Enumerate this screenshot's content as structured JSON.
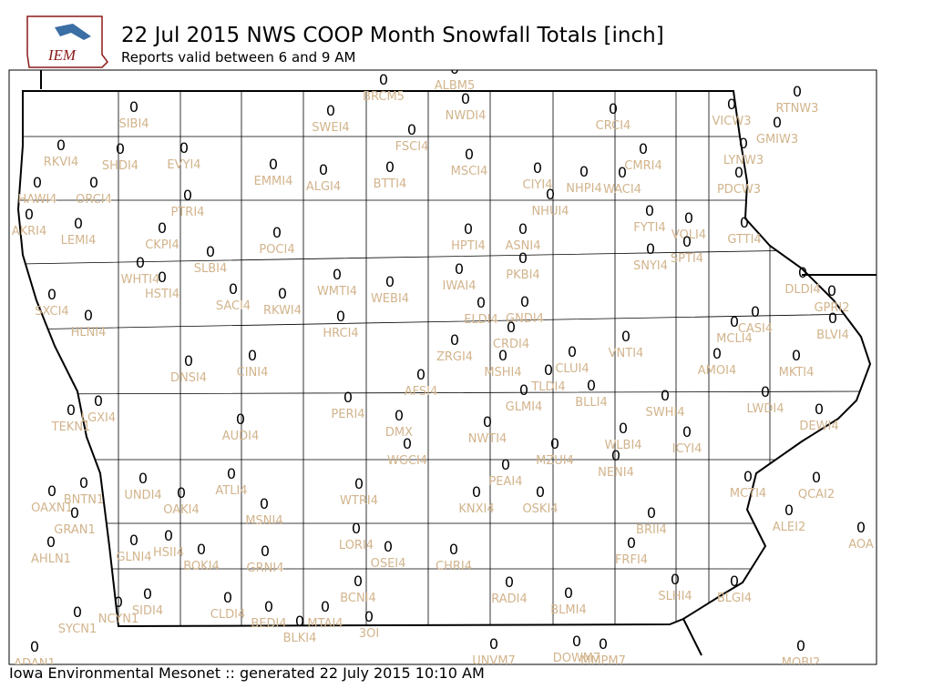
{
  "header": {
    "title": "22 Jul 2015 NWS COOP Month Snowfall Totals [inch]",
    "subtitle": "Reports valid between 6 and 9 AM"
  },
  "logo": "IEM",
  "footer": "Iowa Environmental Mesonet :: generated 22 July 2015 10:10 AM",
  "stations": [
    {
      "id": "SIBI4",
      "value": 0
    },
    {
      "id": "SWEI4",
      "value": 0
    },
    {
      "id": "BRCM5",
      "value": 0
    },
    {
      "id": "ALBM5",
      "value": 0
    },
    {
      "id": "NWDI4",
      "value": 0
    },
    {
      "id": "CRCI4",
      "value": 0
    },
    {
      "id": "VICW3",
      "value": 0
    },
    {
      "id": "RTNW3",
      "value": 0
    },
    {
      "id": "GMIW3",
      "value": 0
    },
    {
      "id": "LYNW3",
      "value": 0
    },
    {
      "id": "PDCW3",
      "value": 0
    },
    {
      "id": "FSCI4",
      "value": 0
    },
    {
      "id": "RKVI4",
      "value": 0
    },
    {
      "id": "SHDI4",
      "value": 0
    },
    {
      "id": "EVYI4",
      "value": 0
    },
    {
      "id": "EMMI4",
      "value": 0
    },
    {
      "id": "ALGI4",
      "value": 0
    },
    {
      "id": "BTTI4",
      "value": 0
    },
    {
      "id": "MSCI4",
      "value": 0
    },
    {
      "id": "CIYI4",
      "value": 0
    },
    {
      "id": "NHPI4",
      "value": 0
    },
    {
      "id": "WACI4",
      "value": 0
    },
    {
      "id": "CMRI4",
      "value": 0
    },
    {
      "id": "HAWI4",
      "value": 0
    },
    {
      "id": "ORCI4",
      "value": 0
    },
    {
      "id": "PTRI4",
      "value": 0
    },
    {
      "id": "NHUI4",
      "value": 0
    },
    {
      "id": "FYTI4",
      "value": 0
    },
    {
      "id": "VOLI4",
      "value": 0
    },
    {
      "id": "GTTI4",
      "value": 0
    },
    {
      "id": "AKRI4",
      "value": 0
    },
    {
      "id": "LEMI4",
      "value": 0
    },
    {
      "id": "CKPI4",
      "value": 0
    },
    {
      "id": "POCI4",
      "value": 0
    },
    {
      "id": "HPTI4",
      "value": 0
    },
    {
      "id": "ASNI4",
      "value": 0
    },
    {
      "id": "SNYI4",
      "value": 0
    },
    {
      "id": "SPTI4",
      "value": 0
    },
    {
      "id": "SLBI4",
      "value": 0
    },
    {
      "id": "PKBI4",
      "value": 0
    },
    {
      "id": "WHTI4",
      "value": 0
    },
    {
      "id": "HSTI4",
      "value": 0
    },
    {
      "id": "WMTI4",
      "value": 0
    },
    {
      "id": "WEBI4",
      "value": 0
    },
    {
      "id": "IWAI4",
      "value": 0
    },
    {
      "id": "DLDI4",
      "value": 0
    },
    {
      "id": "GPRI2",
      "value": 0
    },
    {
      "id": "SXCI4",
      "value": 0
    },
    {
      "id": "SACI4",
      "value": 0
    },
    {
      "id": "RKWI4",
      "value": 0
    },
    {
      "id": "ELDI4",
      "value": 0
    },
    {
      "id": "GNDI4",
      "value": 0
    },
    {
      "id": "HLNI4",
      "value": 0
    },
    {
      "id": "HRCI4",
      "value": 0
    },
    {
      "id": "CRDI4",
      "value": 0
    },
    {
      "id": "CASI4",
      "value": 0
    },
    {
      "id": "BLVI4",
      "value": 0
    },
    {
      "id": "MCLI4",
      "value": 0
    },
    {
      "id": "ZRGI4",
      "value": 0
    },
    {
      "id": "VNTI4",
      "value": 0
    },
    {
      "id": "AMOI4",
      "value": 0
    },
    {
      "id": "DNSI4",
      "value": 0
    },
    {
      "id": "CINI4",
      "value": 0
    },
    {
      "id": "MSHI4",
      "value": 0
    },
    {
      "id": "CLUI4",
      "value": 0
    },
    {
      "id": "MKTI4",
      "value": 0
    },
    {
      "id": "AFSI4",
      "value": 0
    },
    {
      "id": "TLDI4",
      "value": 0
    },
    {
      "id": "BLLI4",
      "value": 0
    },
    {
      "id": "GLMI4",
      "value": 0
    },
    {
      "id": "SWHI4",
      "value": 0
    },
    {
      "id": "LWDI4",
      "value": 0
    },
    {
      "id": "PERI4",
      "value": 0
    },
    {
      "id": "LGXI4",
      "value": 0
    },
    {
      "id": "TEKN1",
      "value": 0
    },
    {
      "id": "DEWI4",
      "value": 0
    },
    {
      "id": "DMX",
      "value": 0
    },
    {
      "id": "AUDI4",
      "value": 0
    },
    {
      "id": "NWTI4",
      "value": 0
    },
    {
      "id": "WLBI4",
      "value": 0
    },
    {
      "id": "ICYI4",
      "value": 0
    },
    {
      "id": "WGCI4",
      "value": 0
    },
    {
      "id": "MZUI4",
      "value": 0
    },
    {
      "id": "NENI4",
      "value": 0
    },
    {
      "id": "PEAI4",
      "value": 0
    },
    {
      "id": "UNDI4",
      "value": 0
    },
    {
      "id": "OAKI4",
      "value": 0
    },
    {
      "id": "ATLI4",
      "value": 0
    },
    {
      "id": "WTRI4",
      "value": 0
    },
    {
      "id": "KNXI4",
      "value": 0
    },
    {
      "id": "OSKI4",
      "value": 0
    },
    {
      "id": "MCTI4",
      "value": 0
    },
    {
      "id": "QCAI2",
      "value": 0
    },
    {
      "id": "BNTN1",
      "value": 0
    },
    {
      "id": "OAXN1",
      "value": 0
    },
    {
      "id": "MSNI4",
      "value": 0
    },
    {
      "id": "GRAN1",
      "value": 0
    },
    {
      "id": "BRII4",
      "value": 0
    },
    {
      "id": "ALEI2",
      "value": 0
    },
    {
      "id": "AOA",
      "value": 0
    },
    {
      "id": "LORI4",
      "value": 0
    },
    {
      "id": "AHLN1",
      "value": 0
    },
    {
      "id": "GLNI4",
      "value": 0
    },
    {
      "id": "HSII4",
      "value": 0
    },
    {
      "id": "BOKI4",
      "value": 0
    },
    {
      "id": "GRNI4",
      "value": 0
    },
    {
      "id": "OSEI4",
      "value": 0
    },
    {
      "id": "CHRI4",
      "value": 0
    },
    {
      "id": "FRFI4",
      "value": 0
    },
    {
      "id": "SLHI4",
      "value": 0
    },
    {
      "id": "BLGI4",
      "value": 0
    },
    {
      "id": "RADI4",
      "value": 0
    },
    {
      "id": "BLMI4",
      "value": 0
    },
    {
      "id": "BCNI4",
      "value": 0
    },
    {
      "id": "SIDI4",
      "value": 0
    },
    {
      "id": "NCYN1",
      "value": 0
    },
    {
      "id": "CLDI4",
      "value": 0
    },
    {
      "id": "BEDI4",
      "value": 0
    },
    {
      "id": "MTAI4",
      "value": 0
    },
    {
      "id": "3OI",
      "value": 0
    },
    {
      "id": "BLKI4",
      "value": 0
    },
    {
      "id": "SYCN1",
      "value": 0
    },
    {
      "id": "ADAN1",
      "value": 0
    },
    {
      "id": "UNVM7",
      "value": 0
    },
    {
      "id": "DOWM7",
      "value": 0
    },
    {
      "id": "MMPM7",
      "value": 0
    },
    {
      "id": "MOBI2",
      "value": 0
    }
  ]
}
